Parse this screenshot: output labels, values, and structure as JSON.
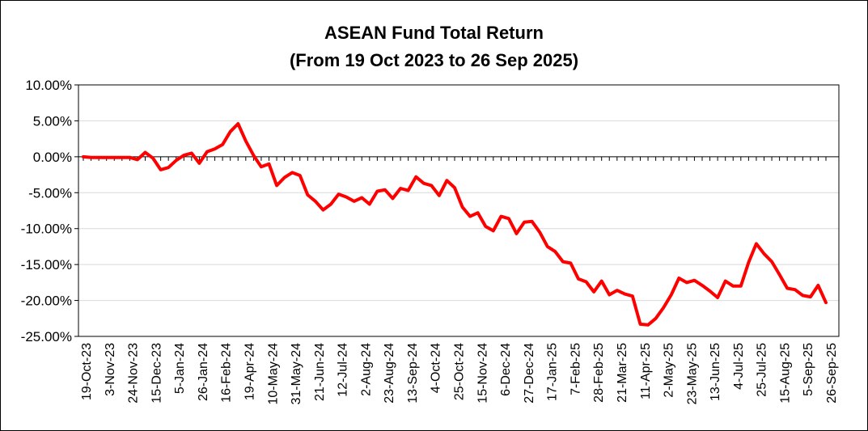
{
  "chart_data": {
    "type": "line",
    "title": "ASEAN Fund Total Return",
    "subtitle": "(From 19 Oct 2023 to 26 Sep 2025)",
    "ylim": [
      -25,
      10
    ],
    "yticks": [
      10,
      5,
      0,
      -5,
      -10,
      -15,
      -20,
      -25
    ],
    "ytick_labels": [
      "10.00%",
      "5.00%",
      "0.00%",
      "-5.00%",
      "-10.00%",
      "-15.00%",
      "-20.00%",
      "-25.00%"
    ],
    "xtick_labels": [
      "19-Oct-23",
      "3-Nov-23",
      "24-Nov-23",
      "15-Dec-23",
      "5-Jan-24",
      "26-Jan-24",
      "16-Feb-24",
      "19-Apr-24",
      "10-May-24",
      "31-May-24",
      "21-Jun-24",
      "12-Jul-24",
      "2-Aug-24",
      "23-Aug-24",
      "13-Sep-24",
      "4-Oct-24",
      "25-Oct-24",
      "15-Nov-24",
      "6-Dec-24",
      "27-Dec-24",
      "17-Jan-25",
      "7-Feb-25",
      "28-Feb-25",
      "21-Mar-25",
      "11-Apr-25",
      "2-May-25",
      "23-May-25",
      "13-Jun-25",
      "4-Jul-25",
      "25-Jul-25",
      "15-Aug-25",
      "5-Sep-25",
      "26-Sep-25"
    ],
    "grid": true,
    "color": "#ff0000",
    "series": [
      {
        "values": [
          0.0,
          -0.1,
          -0.1,
          -0.1,
          -0.1,
          -0.1,
          -0.1,
          -0.4,
          0.6,
          -0.2,
          -1.8,
          -1.5,
          -0.5,
          0.2,
          0.5,
          -0.9,
          0.7,
          1.1,
          1.7,
          3.5,
          4.6,
          2.2,
          0.2,
          -1.4,
          -1.0,
          -4.0,
          -2.9,
          -2.2,
          -2.6,
          -5.3,
          -6.2,
          -7.4,
          -6.6,
          -5.2,
          -5.6,
          -6.2,
          -5.7,
          -6.6,
          -4.8,
          -4.6,
          -5.8,
          -4.4,
          -4.7,
          -2.8,
          -3.7,
          -4.0,
          -5.4,
          -3.3,
          -4.3,
          -7.0,
          -8.3,
          -7.8,
          -9.7,
          -10.3,
          -8.3,
          -8.6,
          -10.7,
          -9.1,
          -9.0,
          -10.5,
          -12.5,
          -13.2,
          -14.6,
          -14.8,
          -17.0,
          -17.4,
          -18.8,
          -17.3,
          -19.2,
          -18.6,
          -19.1,
          -19.4,
          -23.3,
          -23.4,
          -22.5,
          -21.0,
          -19.2,
          -16.9,
          -17.5,
          -17.2,
          -17.9,
          -18.7,
          -19.6,
          -17.3,
          -18.0,
          -18.0,
          -14.7,
          -12.1,
          -13.5,
          -14.6,
          -16.4,
          -18.3,
          -18.5,
          -19.3,
          -19.5,
          -17.9,
          -20.3
        ]
      }
    ]
  }
}
